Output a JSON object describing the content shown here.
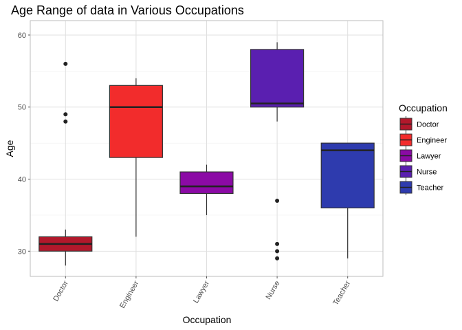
{
  "chart_data": {
    "type": "boxplot",
    "title": "Age Range of data in Various Occupations",
    "xlabel": "Occupation",
    "ylabel": "Age",
    "ylim": [
      26.5,
      62
    ],
    "yticks": [
      30,
      40,
      50,
      60
    ],
    "grid": true,
    "categories": [
      "Doctor",
      "Engineer",
      "Lawyer",
      "Nurse",
      "Teacher"
    ],
    "boxes": [
      {
        "category": "Doctor",
        "color": "#B2182B",
        "whisker_low": 28,
        "q1": 30,
        "median": 31,
        "q3": 32,
        "whisker_high": 33,
        "outliers": [
          48,
          49,
          56
        ]
      },
      {
        "category": "Engineer",
        "color": "#F22C2C",
        "whisker_low": 32,
        "q1": 43,
        "median": 50,
        "q3": 53,
        "whisker_high": 54,
        "outliers": []
      },
      {
        "category": "Lawyer",
        "color": "#8B0AA5",
        "whisker_low": 35,
        "q1": 38,
        "median": 39,
        "q3": 41,
        "whisker_high": 42,
        "outliers": []
      },
      {
        "category": "Nurse",
        "color": "#5A1FB0",
        "whisker_low": 48,
        "q1": 50,
        "median": 50.5,
        "q3": 58,
        "whisker_high": 59,
        "outliers": [
          29,
          30,
          31,
          37
        ]
      },
      {
        "category": "Teacher",
        "color": "#2E3BAE",
        "whisker_low": 29,
        "q1": 36,
        "median": 44,
        "q3": 45,
        "whisker_high": 45,
        "outliers": []
      }
    ],
    "legend": {
      "title": "Occupation",
      "placement": "right",
      "entries": [
        "Doctor",
        "Engineer",
        "Lawyer",
        "Nurse",
        "Teacher"
      ]
    }
  }
}
